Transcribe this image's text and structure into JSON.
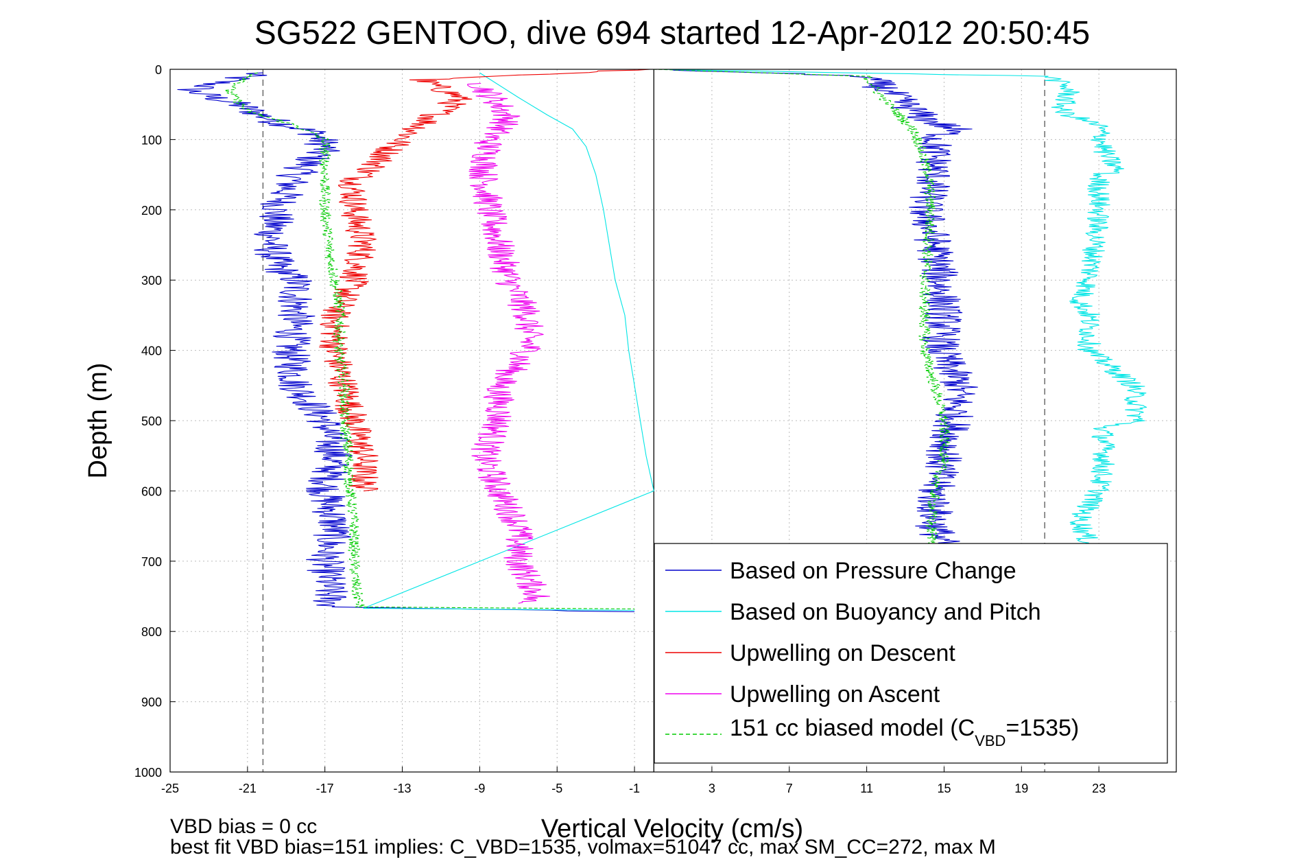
{
  "chart_data": {
    "type": "line",
    "title": "SG522 GENTOO, dive 694 started 12-Apr-2012 20:50:45",
    "xlabel": "Vertical Velocity (cm/s)",
    "ylabel": "Depth (m)",
    "xlim": [
      -25,
      27
    ],
    "ylim": [
      1000,
      0
    ],
    "y_reversed": true,
    "xticks": [
      -25,
      -21,
      -17,
      -13,
      -9,
      -5,
      -1,
      3,
      7,
      11,
      15,
      19,
      23
    ],
    "xtick_labels": [
      "-25",
      "-21",
      "-17",
      "-13",
      "-9",
      "-5",
      "-1",
      "3",
      "7",
      "11",
      "15",
      "19",
      "23"
    ],
    "yticks": [
      0,
      100,
      200,
      300,
      400,
      500,
      600,
      700,
      800,
      900,
      1000
    ],
    "ytick_labels": [
      "0",
      "100",
      "200",
      "300",
      "400",
      "500",
      "600",
      "700",
      "800",
      "900",
      "1000"
    ],
    "grid": true,
    "vertical_lines": [
      {
        "x": -20.2,
        "style": "dashed",
        "color": "#555555"
      },
      {
        "x": 0,
        "style": "solid",
        "color": "#000000"
      },
      {
        "x": 20.2,
        "style": "dashed",
        "color": "#555555"
      }
    ],
    "legend_position": "bottom-right",
    "series": [
      {
        "name": "Based on Pressure Change",
        "color": "#0000cc",
        "style": "solid",
        "jitter": 1.0,
        "points": [
          [
            -20.5,
            5
          ],
          [
            -24,
            30
          ],
          [
            -21.5,
            50
          ],
          [
            -19.5,
            75
          ],
          [
            -17.5,
            90
          ],
          [
            -17,
            110
          ],
          [
            -18.5,
            150
          ],
          [
            -19.5,
            200
          ],
          [
            -19.8,
            250
          ],
          [
            -19.5,
            280
          ],
          [
            -18.5,
            300
          ],
          [
            -18.5,
            350
          ],
          [
            -18.8,
            400
          ],
          [
            -18.5,
            450
          ],
          [
            -17,
            500
          ],
          [
            -16.5,
            550
          ],
          [
            -17,
            600
          ],
          [
            -16.5,
            650
          ],
          [
            -17,
            700
          ],
          [
            -16.7,
            760
          ],
          [
            -16.5,
            765
          ],
          [
            -1,
            772
          ]
        ]
      },
      {
        "name": "Based on Buoyancy and Pitch",
        "color": "#00e5e5",
        "style": "solid",
        "jitter": 0.0,
        "points": [
          [
            -9,
            5
          ],
          [
            -7,
            40
          ],
          [
            -5.5,
            65
          ],
          [
            -4.2,
            85
          ],
          [
            -3.5,
            110
          ],
          [
            -3,
            150
          ],
          [
            -2.6,
            200
          ],
          [
            -2.3,
            250
          ],
          [
            -2,
            300
          ],
          [
            -1.5,
            350
          ],
          [
            -1.3,
            400
          ],
          [
            -1,
            450
          ],
          [
            -0.7,
            500
          ],
          [
            -0.4,
            550
          ],
          [
            0,
            600
          ],
          [
            -15,
            767
          ],
          [
            -1,
            770
          ]
        ]
      },
      {
        "name": "Upwelling on Descent",
        "color": "#ee0000",
        "style": "solid",
        "jitter": 0.8,
        "points": [
          [
            -0.5,
            0
          ],
          [
            -12,
            15
          ],
          [
            -10,
            40
          ],
          [
            -11,
            60
          ],
          [
            -12,
            80
          ],
          [
            -13.5,
            110
          ],
          [
            -14.5,
            140
          ],
          [
            -15.5,
            160
          ],
          [
            -15.5,
            200
          ],
          [
            -15,
            250
          ],
          [
            -15.5,
            300
          ],
          [
            -16.5,
            350
          ],
          [
            -16.5,
            400
          ],
          [
            -16,
            450
          ],
          [
            -15.5,
            500
          ],
          [
            -15,
            550
          ],
          [
            -15,
            600
          ]
        ]
      },
      {
        "name": "Upwelling on Ascent",
        "color": "#ee00ee",
        "style": "solid",
        "jitter": 0.8,
        "points": [
          [
            -9,
            20
          ],
          [
            -8,
            50
          ],
          [
            -7.5,
            70
          ],
          [
            -8.5,
            100
          ],
          [
            -8.8,
            150
          ],
          [
            -8.5,
            200
          ],
          [
            -8,
            250
          ],
          [
            -7.5,
            300
          ],
          [
            -6.5,
            350
          ],
          [
            -6.5,
            400
          ],
          [
            -8,
            450
          ],
          [
            -8,
            500
          ],
          [
            -8.8,
            550
          ],
          [
            -8,
            600
          ],
          [
            -7,
            650
          ],
          [
            -7,
            700
          ],
          [
            -6,
            750
          ],
          [
            -7,
            760
          ]
        ]
      },
      {
        "name": "151 cc biased model (C_VBD=1535)",
        "color": "#00cc00",
        "style": "dashed",
        "jitter": 0.3,
        "points": [
          [
            -20.5,
            5
          ],
          [
            -22,
            30
          ],
          [
            -21,
            60
          ],
          [
            -18.5,
            80
          ],
          [
            -17,
            100
          ],
          [
            -17,
            150
          ],
          [
            -17,
            200
          ],
          [
            -16.8,
            250
          ],
          [
            -16.5,
            300
          ],
          [
            -16.2,
            350
          ],
          [
            -16.3,
            400
          ],
          [
            -16,
            450
          ],
          [
            -16,
            500
          ],
          [
            -15.8,
            550
          ],
          [
            -15.7,
            600
          ],
          [
            -15.5,
            650
          ],
          [
            -15.5,
            700
          ],
          [
            -15.4,
            740
          ],
          [
            -15.2,
            765
          ],
          [
            -1,
            768
          ]
        ]
      },
      {
        "name": "",
        "color": "#0000cc",
        "style": "solid",
        "jitter": 1.0,
        "points": [
          [
            0,
            0
          ],
          [
            11,
            10
          ],
          [
            12,
            30
          ],
          [
            13,
            50
          ],
          [
            14,
            70
          ],
          [
            15.5,
            85
          ],
          [
            14.5,
            100
          ],
          [
            14.5,
            150
          ],
          [
            14,
            200
          ],
          [
            14.5,
            250
          ],
          [
            14.8,
            300
          ],
          [
            15,
            350
          ],
          [
            14.8,
            400
          ],
          [
            15.8,
            450
          ],
          [
            15.5,
            500
          ],
          [
            15,
            550
          ],
          [
            14.5,
            600
          ],
          [
            14.5,
            650
          ],
          [
            15,
            680
          ]
        ]
      },
      {
        "name": "",
        "color": "#00cc00",
        "style": "dashed",
        "jitter": 0.3,
        "points": [
          [
            0,
            0
          ],
          [
            11,
            10
          ],
          [
            11.5,
            30
          ],
          [
            12.5,
            60
          ],
          [
            13.5,
            90
          ],
          [
            14.2,
            150
          ],
          [
            14.3,
            200
          ],
          [
            14.2,
            250
          ],
          [
            14,
            300
          ],
          [
            14,
            350
          ],
          [
            14,
            400
          ],
          [
            14.5,
            450
          ],
          [
            15,
            500
          ],
          [
            15,
            550
          ],
          [
            14.5,
            600
          ],
          [
            14.3,
            650
          ],
          [
            14.5,
            680
          ]
        ]
      },
      {
        "name": "",
        "color": "#00e5e5",
        "style": "solid",
        "jitter": 0.6,
        "points": [
          [
            0,
            0
          ],
          [
            20.5,
            10
          ],
          [
            21.5,
            30
          ],
          [
            21,
            60
          ],
          [
            23,
            80
          ],
          [
            23.3,
            120
          ],
          [
            24,
            145
          ],
          [
            23,
            150
          ],
          [
            23,
            200
          ],
          [
            22.8,
            250
          ],
          [
            22.5,
            300
          ],
          [
            22,
            330
          ],
          [
            22.5,
            350
          ],
          [
            22.5,
            400
          ],
          [
            24.8,
            450
          ],
          [
            25,
            500
          ],
          [
            23.2,
            510
          ],
          [
            23.3,
            550
          ],
          [
            23,
            600
          ],
          [
            22,
            640
          ],
          [
            22.5,
            680
          ]
        ]
      }
    ]
  },
  "legend": {
    "items": [
      {
        "text": "Based on Pressure Change",
        "color": "#0000cc",
        "dash": false
      },
      {
        "text": "Based on Buoyancy and Pitch",
        "color": "#00e5e5",
        "dash": false
      },
      {
        "text": "Upwelling on Descent",
        "color": "#ee0000",
        "dash": false
      },
      {
        "text": "Upwelling on Ascent",
        "color": "#ee00ee",
        "dash": false
      }
    ],
    "model": {
      "prefix": "151 cc biased model (C",
      "sub": "VBD",
      "suffix": "=1535)",
      "color": "#00cc00"
    }
  },
  "footer": {
    "line1": "VBD bias = 0 cc",
    "line2": "best fit VBD bias=151 implies: C_VBD=1535, volmax=51047 cc, max SM_CC=272, max M"
  }
}
